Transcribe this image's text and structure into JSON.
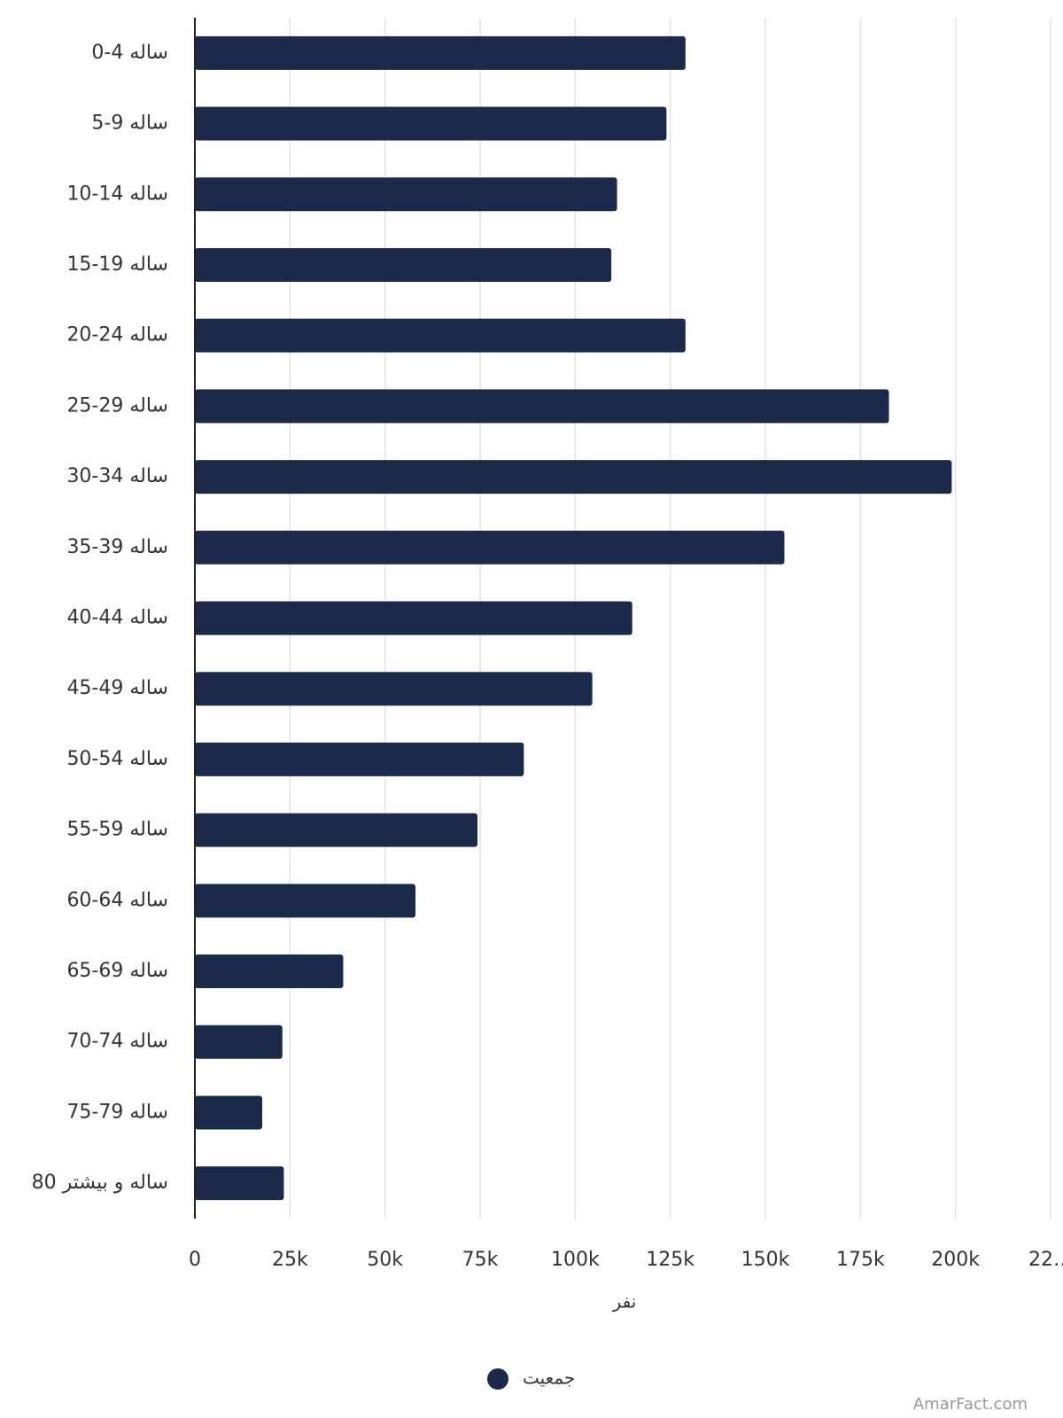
{
  "chart_data": {
    "type": "bar",
    "orientation": "horizontal",
    "categories": [
      "0-4 ساله",
      "5-9 ساله",
      "10-14 ساله",
      "15-19 ساله",
      "20-24 ساله",
      "25-29 ساله",
      "30-34 ساله",
      "35-39 ساله",
      "40-44 ساله",
      "45-49 ساله",
      "50-54 ساله",
      "55-59 ساله",
      "60-64 ساله",
      "65-69 ساله",
      "70-74 ساله",
      "75-79 ساله",
      "80 ساله و بیشتر"
    ],
    "series": [
      {
        "name": "جمعیت",
        "color": "#1b2a4a",
        "values": [
          129000,
          124000,
          111000,
          109500,
          129000,
          182500,
          199000,
          155000,
          115000,
          104500,
          86500,
          74300,
          58000,
          39000,
          23000,
          17700,
          23400
        ]
      }
    ],
    "xlabel": "نفر",
    "xlim": [
      0,
      225000
    ],
    "xticks": [
      0,
      {
        "value": 25000,
        "label": "25k"
      },
      {
        "value": 50000,
        "label": "50k"
      },
      {
        "value": 75000,
        "label": "75k"
      },
      {
        "value": 100000,
        "label": "100k"
      },
      {
        "value": 125000,
        "label": "125k"
      },
      {
        "value": 150000,
        "label": "150k"
      },
      {
        "value": 175000,
        "label": "175k"
      },
      {
        "value": 200000,
        "label": "200k"
      },
      {
        "value": 225000,
        "label": "22…"
      }
    ],
    "grid": true,
    "legend": "bottom",
    "watermark": "AmarFact.com"
  }
}
